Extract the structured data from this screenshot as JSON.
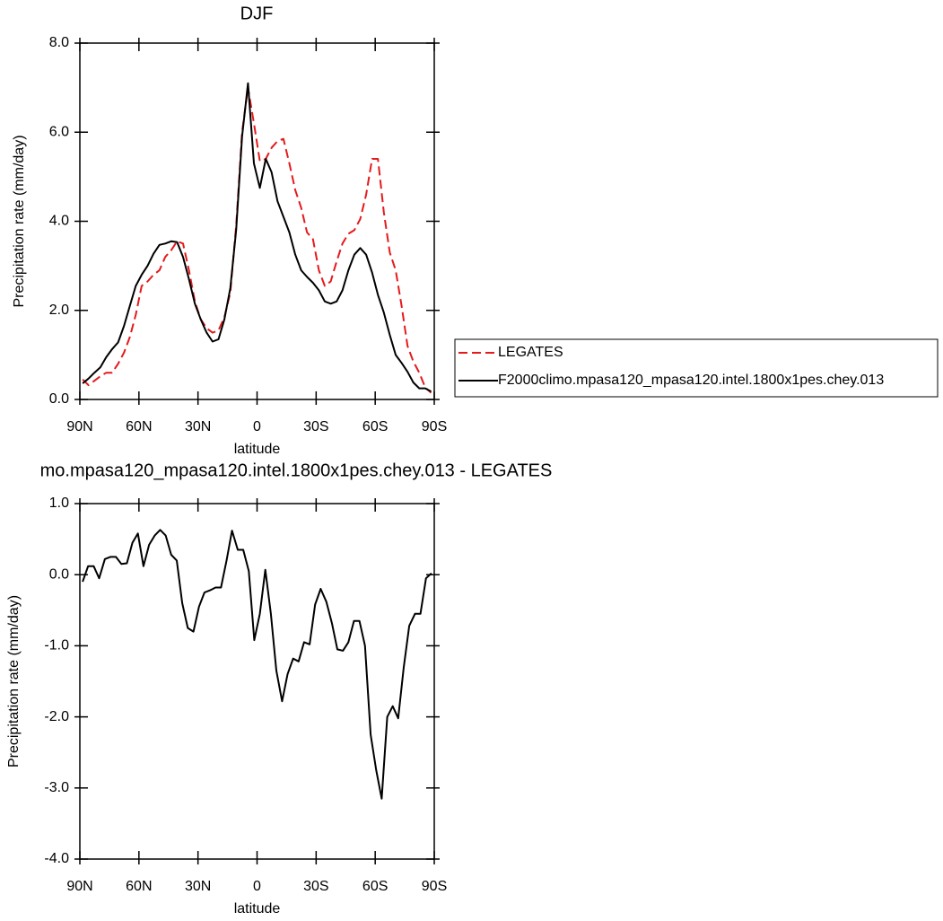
{
  "chart_data": [
    {
      "type": "line",
      "title": "DJF",
      "xlabel": "latitude",
      "ylabel": "Precipitation rate (mm/day)",
      "xlim": [
        90,
        -90
      ],
      "ylim": [
        0,
        8
      ],
      "xticks": [
        {
          "value": 90,
          "label": "90N"
        },
        {
          "value": 60,
          "label": "60N"
        },
        {
          "value": 30,
          "label": "30N"
        },
        0,
        {
          "value": -30,
          "label": "30S"
        },
        {
          "value": -60,
          "label": "60S"
        },
        {
          "value": -90,
          "label": "90S"
        }
      ],
      "yticks": [
        {
          "value": 0,
          "label": "0.0"
        },
        {
          "value": 2,
          "label": "2.0"
        },
        {
          "value": 4,
          "label": "4.0"
        },
        {
          "value": 6,
          "label": "6.0"
        },
        {
          "value": 8,
          "label": "8.0"
        }
      ],
      "legend": "outside-right",
      "x": [
        88.6,
        85.6,
        82.6,
        79.6,
        76.6,
        73.6,
        70.6,
        67.6,
        64.6,
        61.6,
        58.6,
        55.6,
        52.6,
        49.6,
        46.6,
        43.6,
        40.6,
        37.6,
        34.6,
        31.6,
        28.6,
        25.6,
        22.6,
        19.6,
        16.6,
        13.6,
        10.6,
        7.6,
        4.6,
        1.6,
        -1.4,
        -4.4,
        -7.4,
        -10.4,
        -13.4,
        -16.4,
        -19.4,
        -22.4,
        -25.4,
        -28.4,
        -31.4,
        -34.4,
        -37.4,
        -40.4,
        -43.4,
        -46.4,
        -49.4,
        -52.4,
        -55.4,
        -58.4,
        -61.4,
        -64.4,
        -67.4,
        -70.4,
        -73.4,
        -76.4,
        -79.4,
        -82.4,
        -85.4,
        -88.4
      ],
      "series": [
        {
          "name": "LEGATES",
          "color": "#e41a1c",
          "dash": "dashed",
          "values": [
            0.45,
            0.32,
            0.42,
            0.52,
            0.6,
            0.6,
            0.8,
            1.05,
            1.4,
            1.9,
            2.55,
            2.65,
            2.8,
            2.9,
            3.2,
            3.35,
            3.55,
            3.5,
            2.9,
            2.2,
            1.8,
            1.6,
            1.5,
            1.55,
            1.85,
            2.4,
            3.9,
            6.0,
            7.0,
            6.2,
            5.35,
            5.4,
            5.65,
            5.8,
            5.85,
            5.3,
            4.7,
            4.3,
            3.75,
            3.6,
            2.9,
            2.55,
            2.65,
            3.1,
            3.5,
            3.72,
            3.8,
            4.05,
            4.6,
            5.4,
            5.4,
            4.2,
            3.3,
            2.9,
            2.1,
            1.2,
            0.85,
            0.6,
            0.27,
            0.15
          ]
        },
        {
          "name": "F2000climo.mpasa120_mpasa120.intel.1800x1pes.chey.013",
          "color": "#000000",
          "dash": "solid",
          "values": [
            0.36,
            0.47,
            0.6,
            0.72,
            0.95,
            1.13,
            1.28,
            1.65,
            2.1,
            2.55,
            2.8,
            3.0,
            3.27,
            3.47,
            3.5,
            3.55,
            3.53,
            3.2,
            2.7,
            2.15,
            1.8,
            1.5,
            1.3,
            1.35,
            1.8,
            2.5,
            3.8,
            5.9,
            7.1,
            5.3,
            4.75,
            5.4,
            5.1,
            4.45,
            4.1,
            3.75,
            3.25,
            2.9,
            2.75,
            2.62,
            2.45,
            2.2,
            2.15,
            2.2,
            2.45,
            2.9,
            3.25,
            3.4,
            3.25,
            2.85,
            2.35,
            1.95,
            1.45,
            1.0,
            0.82,
            0.62,
            0.38,
            0.25,
            0.25,
            0.18
          ]
        }
      ]
    },
    {
      "type": "line",
      "title": "mo.mpasa120_mpasa120.intel.1800x1pes.chey.013 - LEGATES",
      "xlabel": "latitude",
      "ylabel": "Precipitation rate (mm/day)",
      "xlim": [
        90,
        -90
      ],
      "ylim": [
        -4,
        1
      ],
      "xticks": [
        {
          "value": 90,
          "label": "90N"
        },
        {
          "value": 60,
          "label": "60N"
        },
        {
          "value": 30,
          "label": "30N"
        },
        0,
        {
          "value": -30,
          "label": "30S"
        },
        {
          "value": -60,
          "label": "60S"
        },
        {
          "value": -90,
          "label": "90S"
        }
      ],
      "yticks": [
        {
          "value": -4,
          "label": "-4.0"
        },
        {
          "value": -3,
          "label": "-3.0"
        },
        {
          "value": -2,
          "label": "-2.0"
        },
        {
          "value": -1,
          "label": "-1.0"
        },
        {
          "value": 0,
          "label": "0.0"
        },
        {
          "value": 1,
          "label": "1.0"
        }
      ],
      "x": [
        88.6,
        85.8,
        83.0,
        80.2,
        77.3,
        74.5,
        71.7,
        68.9,
        66.1,
        63.3,
        60.5,
        57.7,
        54.8,
        52.0,
        49.2,
        46.4,
        43.6,
        40.8,
        38.0,
        35.2,
        32.3,
        29.5,
        26.7,
        23.9,
        21.1,
        18.3,
        15.5,
        12.7,
        9.8,
        7.0,
        4.2,
        1.4,
        -1.4,
        -4.2,
        -7.0,
        -9.8,
        -12.7,
        -15.5,
        -18.3,
        -21.1,
        -23.9,
        -26.7,
        -29.5,
        -32.3,
        -35.2,
        -38.0,
        -40.8,
        -43.6,
        -46.4,
        -49.2,
        -52.0,
        -54.8,
        -57.7,
        -60.5,
        -63.3,
        -66.1,
        -68.9,
        -71.7,
        -74.5,
        -77.3,
        -80.2,
        -83.0,
        -85.8,
        -88.6
      ],
      "series": [
        {
          "color": "#000000",
          "dash": "solid",
          "values": [
            -0.1,
            0.12,
            0.12,
            -0.05,
            0.22,
            0.25,
            0.25,
            0.15,
            0.16,
            0.45,
            0.58,
            0.12,
            0.42,
            0.55,
            0.63,
            0.55,
            0.28,
            0.2,
            -0.4,
            -0.75,
            -0.8,
            -0.45,
            -0.25,
            -0.22,
            -0.18,
            -0.18,
            0.2,
            0.62,
            0.35,
            0.35,
            0.05,
            -0.92,
            -0.55,
            0.07,
            -0.55,
            -1.35,
            -1.78,
            -1.4,
            -1.18,
            -1.22,
            -0.95,
            -0.98,
            -0.42,
            -0.2,
            -0.38,
            -0.68,
            -1.05,
            -1.07,
            -0.95,
            -0.65,
            -0.65,
            -1.0,
            -2.25,
            -2.75,
            -3.15,
            -2.0,
            -1.85,
            -2.02,
            -1.3,
            -0.72,
            -0.55,
            -0.55,
            -0.05,
            0.02
          ]
        }
      ]
    }
  ]
}
